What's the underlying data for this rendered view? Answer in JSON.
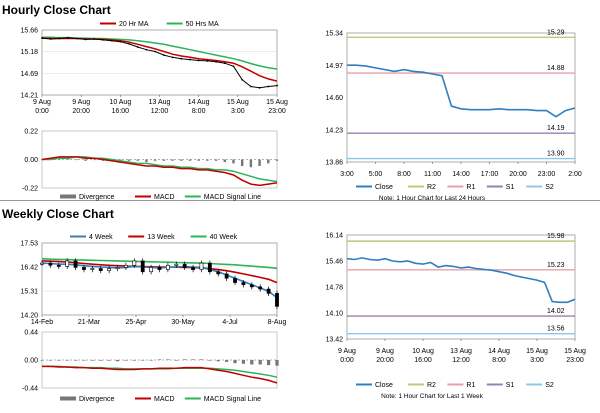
{
  "hourly_title": "Hourly Close Chart",
  "weekly_title": "Weekly Close Chart",
  "colors": {
    "close": "#2f7fc0",
    "ma_short": "#c00000",
    "ma_long": "#2db35a",
    "r2": "#b9cc7a",
    "r1": "#e8a0a8",
    "s1": "#9a7fb5",
    "s2": "#8cc8e8",
    "divergence": "#777777",
    "candle": "#000000",
    "grid": "#d8d8d8"
  },
  "chart_data": [
    {
      "id": "hourly_price",
      "type": "line",
      "title": "Hourly Close Chart",
      "legend": [
        "20 Hr MA",
        "50 Hrs MA"
      ],
      "ylim": [
        14.21,
        15.66
      ],
      "y_ticks": [
        "15.66",
        "15.18",
        "14.69",
        "14.21"
      ],
      "x_ticks": [
        "9 Aug\n0:00",
        "9 Aug\n20:00",
        "10 Aug\n16:00",
        "13 Aug\n12:00",
        "14 Aug\n8:00",
        "15 Aug\n3:00",
        "15 Aug\n23:00"
      ],
      "series": [
        {
          "name": "Price",
          "values": [
            15.48,
            15.46,
            15.47,
            15.49,
            15.47,
            15.45,
            15.46,
            15.44,
            15.42,
            15.4,
            15.35,
            15.28,
            15.22,
            15.18,
            15.1,
            15.05,
            15.02,
            15.0,
            14.98,
            14.97,
            14.95,
            14.92,
            14.85,
            14.55,
            14.4,
            14.37,
            14.4,
            14.42
          ]
        },
        {
          "name": "20 Hr MA",
          "values": [
            15.48,
            15.47,
            15.47,
            15.47,
            15.47,
            15.46,
            15.46,
            15.45,
            15.44,
            15.42,
            15.39,
            15.34,
            15.29,
            15.24,
            15.18,
            15.12,
            15.08,
            15.05,
            15.02,
            15.0,
            14.98,
            14.95,
            14.92,
            14.84,
            14.74,
            14.64,
            14.57,
            14.52
          ]
        },
        {
          "name": "50 Hrs MA",
          "values": [
            15.5,
            15.5,
            15.49,
            15.49,
            15.48,
            15.48,
            15.47,
            15.47,
            15.46,
            15.45,
            15.44,
            15.42,
            15.4,
            15.37,
            15.34,
            15.3,
            15.26,
            15.22,
            15.18,
            15.14,
            15.1,
            15.06,
            15.02,
            14.97,
            14.91,
            14.86,
            14.82,
            14.79
          ]
        }
      ]
    },
    {
      "id": "hourly_macd",
      "type": "line",
      "ylim": [
        -0.22,
        0.22
      ],
      "y_ticks": [
        "0.22",
        "0.00",
        "-0.22"
      ],
      "legend": [
        "Divergence",
        "MACD",
        "MACD Signal Line"
      ],
      "series": [
        {
          "name": "MACD",
          "values": [
            0.0,
            0.01,
            0.02,
            0.02,
            0.02,
            0.01,
            0.01,
            0.0,
            -0.01,
            -0.02,
            -0.03,
            -0.04,
            -0.05,
            -0.05,
            -0.06,
            -0.06,
            -0.07,
            -0.07,
            -0.08,
            -0.08,
            -0.09,
            -0.1,
            -0.12,
            -0.16,
            -0.19,
            -0.2,
            -0.19,
            -0.18
          ]
        },
        {
          "name": "MACD Signal Line",
          "values": [
            0.0,
            0.0,
            0.01,
            0.01,
            0.02,
            0.02,
            0.01,
            0.01,
            0.0,
            -0.01,
            -0.02,
            -0.03,
            -0.03,
            -0.04,
            -0.05,
            -0.05,
            -0.06,
            -0.06,
            -0.07,
            -0.07,
            -0.08,
            -0.08,
            -0.09,
            -0.11,
            -0.13,
            -0.15,
            -0.16,
            -0.17
          ]
        },
        {
          "name": "Divergence",
          "values": [
            0.0,
            0.01,
            0.01,
            0.01,
            0.0,
            -0.01,
            0.0,
            -0.01,
            -0.01,
            -0.01,
            -0.01,
            -0.01,
            -0.02,
            -0.01,
            -0.01,
            -0.01,
            -0.01,
            -0.01,
            -0.01,
            -0.01,
            -0.01,
            -0.02,
            -0.03,
            -0.05,
            -0.06,
            -0.05,
            -0.03,
            -0.01
          ]
        }
      ]
    },
    {
      "id": "hourly_close",
      "type": "line",
      "ylim": [
        13.86,
        15.34
      ],
      "y_ticks": [
        "15.34",
        "14.97",
        "14.60",
        "14.23",
        "13.86"
      ],
      "x_ticks": [
        "3:00",
        "5:00",
        "8:00",
        "11:00",
        "14:00",
        "17:00",
        "20:00",
        "23:00",
        "2:00"
      ],
      "levels": [
        {
          "name": "R2",
          "value": 15.29,
          "label": "15.29"
        },
        {
          "name": "R1",
          "value": 14.88,
          "label": "14.88"
        },
        {
          "name": "S1",
          "value": 14.19,
          "label": "14.19"
        },
        {
          "name": "S2",
          "value": 13.9,
          "label": "13.90"
        }
      ],
      "legend": [
        "Close",
        "R2",
        "R1",
        "S1",
        "S2"
      ],
      "note": "Note: 1 Hour Chart for Last 24 Hours",
      "series": [
        {
          "name": "Close",
          "values": [
            14.97,
            14.97,
            14.96,
            14.94,
            14.92,
            14.9,
            14.92,
            14.9,
            14.89,
            14.87,
            14.85,
            14.5,
            14.47,
            14.46,
            14.46,
            14.46,
            14.47,
            14.46,
            14.46,
            14.46,
            14.45,
            14.45,
            14.38,
            14.45,
            14.48
          ]
        }
      ]
    },
    {
      "id": "weekly_price",
      "type": "candlestick",
      "title": "Weekly Close Chart",
      "legend": [
        "4 Week",
        "13 Week",
        "40 Week"
      ],
      "ylim": [
        14.2,
        17.53
      ],
      "y_ticks": [
        "17.53",
        "16.42",
        "15.31",
        "14.20"
      ],
      "x_ticks": [
        "14-Feb",
        "21-Mar",
        "25-Apr",
        "30-May",
        "4-Jul",
        "8-Aug"
      ],
      "series": [
        {
          "name": "Close",
          "values": [
            16.6,
            16.5,
            16.45,
            16.7,
            16.4,
            16.3,
            16.35,
            16.25,
            16.35,
            16.4,
            16.5,
            16.7,
            16.2,
            16.4,
            16.3,
            16.5,
            16.55,
            16.4,
            16.3,
            16.6,
            16.2,
            16.1,
            15.9,
            15.7,
            15.6,
            15.5,
            15.4,
            15.2,
            14.6
          ]
        },
        {
          "name": "4 Week",
          "values": [
            16.6,
            16.58,
            16.55,
            16.55,
            16.52,
            16.48,
            16.45,
            16.42,
            16.4,
            16.38,
            16.4,
            16.45,
            16.42,
            16.4,
            16.38,
            16.4,
            16.42,
            16.44,
            16.42,
            16.4,
            16.3,
            16.2,
            16.05,
            15.9,
            15.75,
            15.6,
            15.45,
            15.3,
            15.0
          ]
        },
        {
          "name": "13 Week",
          "values": [
            16.7,
            16.69,
            16.67,
            16.65,
            16.62,
            16.58,
            16.55,
            16.52,
            16.5,
            16.48,
            16.46,
            16.45,
            16.44,
            16.43,
            16.42,
            16.42,
            16.41,
            16.4,
            16.39,
            16.38,
            16.34,
            16.3,
            16.25,
            16.18,
            16.1,
            16.02,
            15.94,
            15.85,
            15.7
          ]
        },
        {
          "name": "40 Week",
          "values": [
            16.8,
            16.78,
            16.77,
            16.76,
            16.75,
            16.74,
            16.73,
            16.72,
            16.71,
            16.7,
            16.69,
            16.68,
            16.67,
            16.66,
            16.65,
            16.64,
            16.63,
            16.62,
            16.61,
            16.6,
            16.58,
            16.56,
            16.54,
            16.52,
            16.49,
            16.46,
            16.43,
            16.4,
            16.36
          ]
        }
      ]
    },
    {
      "id": "weekly_macd",
      "type": "line",
      "ylim": [
        -0.44,
        0.44
      ],
      "y_ticks": [
        "0.44",
        "0.00",
        "-0.44"
      ],
      "legend": [
        "Divergence",
        "MACD",
        "MACD Signal Line"
      ],
      "series": [
        {
          "name": "MACD",
          "values": [
            -0.1,
            -0.1,
            -0.11,
            -0.11,
            -0.12,
            -0.12,
            -0.13,
            -0.13,
            -0.14,
            -0.15,
            -0.15,
            -0.15,
            -0.14,
            -0.14,
            -0.13,
            -0.13,
            -0.13,
            -0.12,
            -0.12,
            -0.12,
            -0.14,
            -0.16,
            -0.18,
            -0.21,
            -0.24,
            -0.27,
            -0.29,
            -0.32,
            -0.36
          ]
        },
        {
          "name": "MACD Signal Line",
          "values": [
            -0.1,
            -0.1,
            -0.1,
            -0.11,
            -0.11,
            -0.12,
            -0.12,
            -0.12,
            -0.13,
            -0.13,
            -0.14,
            -0.14,
            -0.14,
            -0.14,
            -0.14,
            -0.14,
            -0.13,
            -0.13,
            -0.13,
            -0.13,
            -0.13,
            -0.14,
            -0.15,
            -0.16,
            -0.18,
            -0.2,
            -0.22,
            -0.24,
            -0.27
          ]
        },
        {
          "name": "Divergence",
          "values": [
            0.0,
            0.0,
            -0.01,
            0.0,
            -0.01,
            0.0,
            -0.01,
            -0.01,
            -0.01,
            -0.02,
            -0.01,
            -0.01,
            0.0,
            0.0,
            0.01,
            0.01,
            0.0,
            0.01,
            0.01,
            0.01,
            -0.01,
            -0.02,
            -0.03,
            -0.05,
            -0.06,
            -0.07,
            -0.07,
            -0.08,
            -0.09
          ]
        }
      ]
    },
    {
      "id": "weekly_close",
      "type": "line",
      "ylim": [
        13.42,
        16.14
      ],
      "y_ticks": [
        "16.14",
        "15.46",
        "14.78",
        "14.10",
        "13.42"
      ],
      "x_ticks": [
        "9 Aug\n0:00",
        "9 Aug\n20:00",
        "10 Aug\n16:00",
        "13 Aug\n12:00",
        "14 Aug\n8:00",
        "15 Aug\n3:00",
        "15 Aug\n23:00"
      ],
      "levels": [
        {
          "name": "R2",
          "value": 15.98,
          "label": "15.98"
        },
        {
          "name": "R1",
          "value": 15.23,
          "label": "15.23"
        },
        {
          "name": "S1",
          "value": 14.02,
          "label": "14.02"
        },
        {
          "name": "S2",
          "value": 13.56,
          "label": "13.56"
        }
      ],
      "legend": [
        "Close",
        "R2",
        "R1",
        "S1",
        "S2"
      ],
      "note": "Note: 1 Hour Chart for Last 1 Week",
      "series": [
        {
          "name": "Close",
          "values": [
            15.52,
            15.5,
            15.54,
            15.5,
            15.48,
            15.52,
            15.46,
            15.44,
            15.46,
            15.4,
            15.38,
            15.42,
            15.3,
            15.34,
            15.32,
            15.28,
            15.3,
            15.26,
            15.24,
            15.22,
            15.18,
            15.14,
            15.08,
            15.04,
            15.0,
            14.96,
            14.9,
            14.4,
            14.38,
            14.38,
            14.46
          ]
        }
      ]
    }
  ]
}
